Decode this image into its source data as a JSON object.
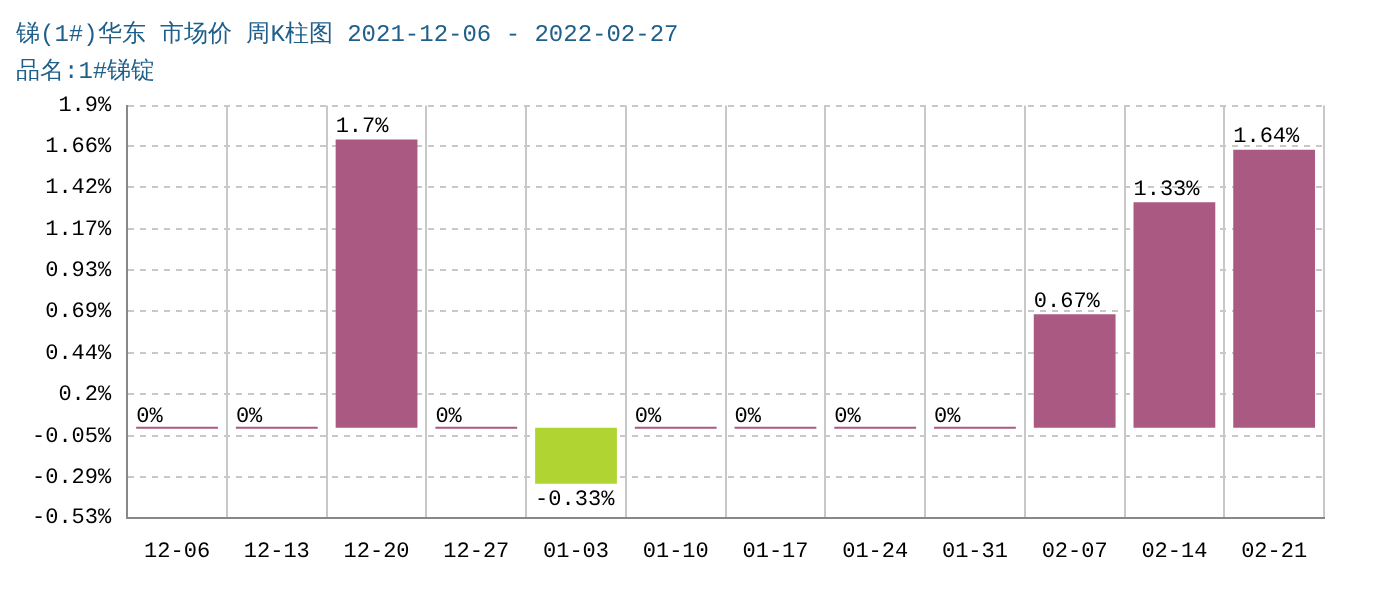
{
  "chart_data": {
    "type": "bar",
    "title": "锑(1#)华东 市场价 周K柱图 2021-12-06 - 2022-02-27",
    "subtitle": "品名:1#锑锭",
    "categories": [
      "12-06",
      "12-13",
      "12-20",
      "12-27",
      "01-03",
      "01-10",
      "01-17",
      "01-24",
      "01-31",
      "02-07",
      "02-14",
      "02-21"
    ],
    "values": [
      0,
      0,
      1.7,
      0,
      -0.33,
      0,
      0,
      0,
      0,
      0.67,
      1.33,
      1.64
    ],
    "colors": [
      "#aa5a82",
      "#aa5a82",
      "#aa5a82",
      "#aa5a82",
      "#b0d432",
      "#aa5a82",
      "#aa5a82",
      "#aa5a82",
      "#aa5a82",
      "#aa5a82",
      "#aa5a82",
      "#aa5a82"
    ],
    "value_labels": [
      "0%",
      "0%",
      "1.7%",
      "0%",
      "-0.33%",
      "0%",
      "0%",
      "0%",
      "0%",
      "0.67%",
      "1.33%",
      "1.64%"
    ],
    "ylim": [
      -0.53,
      1.9
    ],
    "yticks": [
      {
        "value": -0.53,
        "label": "-0.53%"
      },
      {
        "value": -0.29,
        "label": "-0.29%"
      },
      {
        "value": -0.05,
        "label": "-0.05%"
      },
      {
        "value": 0.2,
        "label": "0.2%"
      },
      {
        "value": 0.44,
        "label": "0.44%"
      },
      {
        "value": 0.69,
        "label": "0.69%"
      },
      {
        "value": 0.93,
        "label": "0.93%"
      },
      {
        "value": 1.17,
        "label": "1.17%"
      },
      {
        "value": 1.42,
        "label": "1.42%"
      },
      {
        "value": 1.66,
        "label": "1.66%"
      },
      {
        "value": 1.9,
        "label": "1.9%"
      }
    ],
    "grid": true,
    "legend": false
  }
}
